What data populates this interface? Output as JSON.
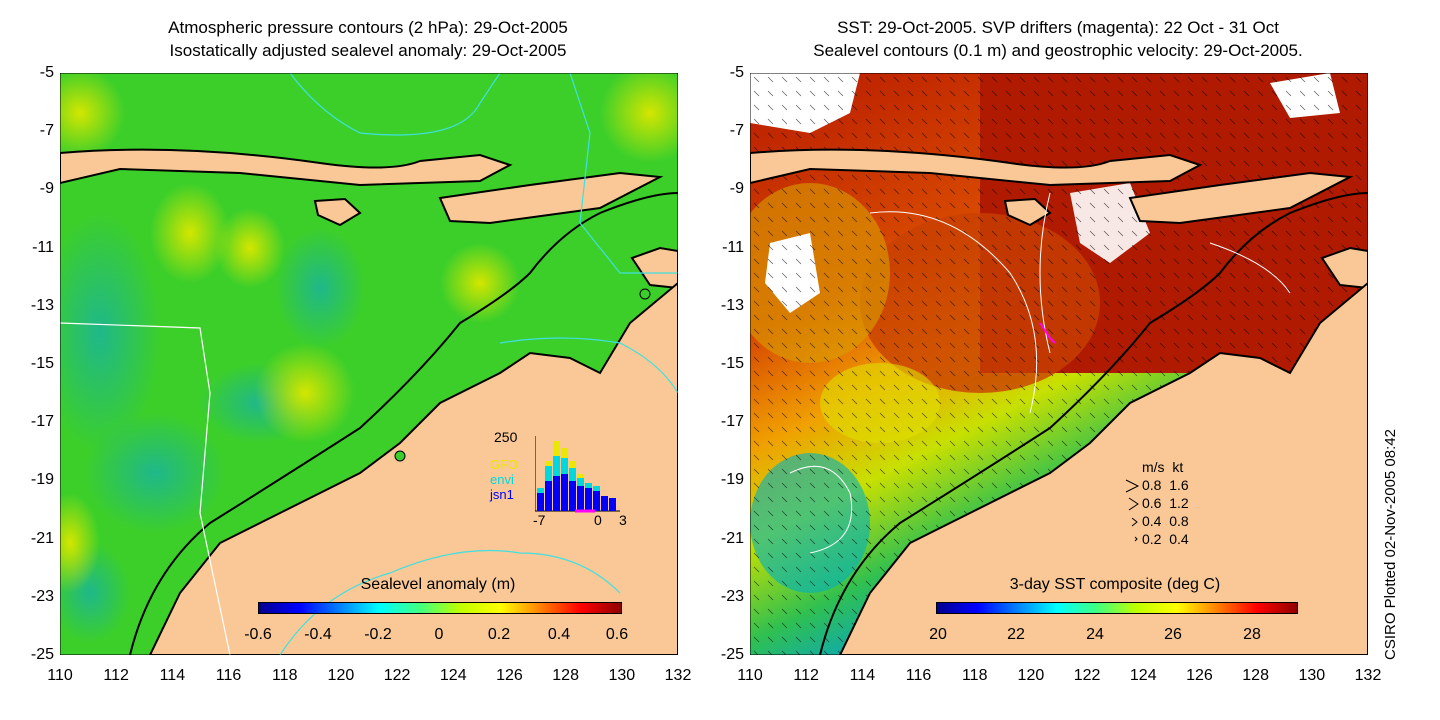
{
  "left_panel": {
    "title_line1": "Atmospheric pressure contours (2 hPa): 29-Oct-2005",
    "title_line2": "Isostatically adjusted sealevel anomaly: 29-Oct-2005",
    "colorbar_label": "Sealevel anomaly (m)",
    "colorbar_ticks": [
      "-0.6",
      "-0.4",
      "-0.2",
      "0",
      "0.2",
      "0.4",
      "0.6"
    ],
    "inset": {
      "ymax_label": "250",
      "x_ticks": [
        "-7",
        "0",
        "3"
      ],
      "satellites": [
        {
          "name": "GFO",
          "color": "#e8e800"
        },
        {
          "name": "envi",
          "color": "#00d8e0"
        },
        {
          "name": "jsn1",
          "color": "#0000ff"
        }
      ]
    }
  },
  "right_panel": {
    "title_line1": "SST: 29-Oct-2005. SVP drifters (magenta): 22 Oct - 31 Oct",
    "title_line2": "Sealevel contours (0.1 m) and geostrophic velocity: 29-Oct-2005.",
    "colorbar_label": "3-day SST composite (deg C)",
    "colorbar_ticks": [
      "20",
      "22",
      "24",
      "26",
      "28"
    ],
    "velocity_legend": {
      "header": "m/s  kt",
      "rows": [
        "0.8  1.6",
        "0.6  1.2",
        "0.4  0.8",
        "0.2  0.4"
      ]
    }
  },
  "y_ticks": [
    "-5",
    "-7",
    "-9",
    "-11",
    "-13",
    "-15",
    "-17",
    "-19",
    "-21",
    "-23",
    "-25"
  ],
  "x_ticks": [
    "110",
    "112",
    "114",
    "116",
    "118",
    "120",
    "122",
    "124",
    "126",
    "128",
    "130",
    "132"
  ],
  "credit": "CSIRO Plotted 02-Nov-2005 08:42",
  "colors": {
    "land": "#f9c896",
    "ocean_sla": "#3ccf2a",
    "ocean_sst_warm": "#b01a00",
    "contour_cyan": "#40e0e0"
  }
}
